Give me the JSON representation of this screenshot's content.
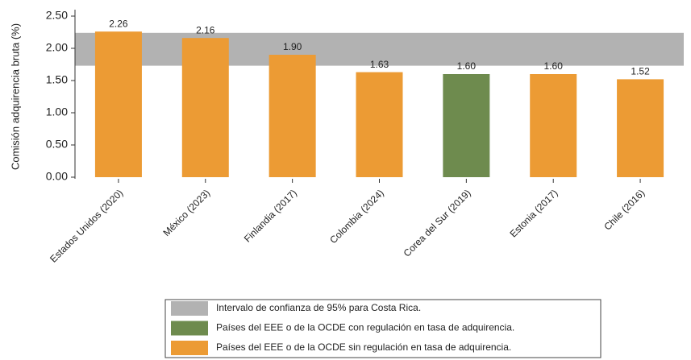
{
  "chart_data": {
    "type": "bar",
    "y_label": "Comisión adquirencia bruta (%)",
    "categories": [
      "Estados Unidos (2020)",
      "México (2023)",
      "Finlandia (2017)",
      "Colombia (2024)",
      "Corea del Sur (2019)",
      "Estonia (2017)",
      "Chile (2016)"
    ],
    "values": [
      2.26,
      2.16,
      1.9,
      1.63,
      1.6,
      1.6,
      1.52
    ],
    "value_labels": [
      "2.26",
      "2.16",
      "1.90",
      "1.63",
      "1.60",
      "1.60",
      "1.52"
    ],
    "colors": [
      "#ec9b34",
      "#ec9b34",
      "#ec9b34",
      "#ec9b34",
      "#6e8b4e",
      "#ec9b34",
      "#ec9b34"
    ],
    "band": {
      "range": [
        1.73,
        2.24
      ],
      "color": "#b2b2b2",
      "name": "Intervalo de confianza de 95% para Costa Rica."
    },
    "legend": [
      {
        "name": "Intervalo de confianza de 95% para Costa Rica.",
        "color": "#b2b2b2"
      },
      {
        "name": "Países del EEE o de la OCDE con regulación en tasa de adquirencia.",
        "color": "#6e8b4e"
      },
      {
        "name": "Países del EEE o de la OCDE sin regulación en tasa de adquirencia.",
        "color": "#ec9b34"
      }
    ],
    "ylim": [
      0,
      2.5
    ],
    "yticks": [
      {
        "value": 0,
        "label": "0.00"
      },
      {
        "value": 0.5,
        "label": "0.50"
      },
      {
        "value": 1,
        "label": "1.00"
      },
      {
        "value": 1.5,
        "label": "1.50"
      },
      {
        "value": 2,
        "label": "2.00"
      },
      {
        "value": 2.5,
        "label": "2.50"
      }
    ]
  }
}
